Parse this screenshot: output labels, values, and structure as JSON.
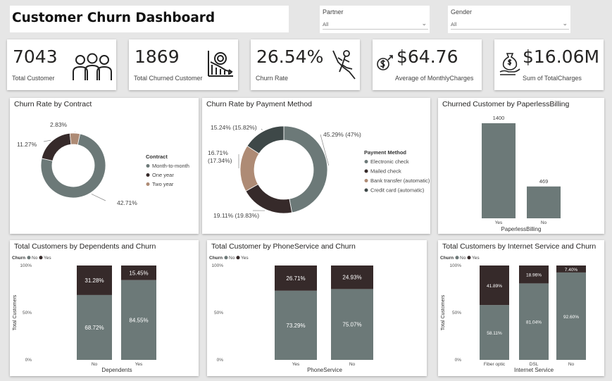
{
  "header": {
    "title": "Customer Churn Dashboard"
  },
  "slicers": [
    {
      "label": "Partner",
      "value": "All"
    },
    {
      "label": "Gender",
      "value": "All"
    }
  ],
  "kpis": [
    {
      "value": "7043",
      "label": "Total Customer",
      "icon": "people-group-icon"
    },
    {
      "value": "1869",
      "label": "Total Churned Customer",
      "icon": "declining-chart-icon"
    },
    {
      "value": "26.54%",
      "label": "Churn Rate",
      "icon": "falling-person-icon"
    },
    {
      "value": "$64.76",
      "label": "Average of MonthlyCharges",
      "icon": "dollar-growth-icon"
    },
    {
      "value": "$16.06M",
      "label": "Sum of TotalCharges",
      "icon": "money-bag-hand-icon"
    }
  ],
  "colors": {
    "primary": "#6c7978",
    "dark": "#362a2a",
    "tan": "#ae8b75",
    "darkslate": "#3e4848"
  },
  "chart_data": [
    {
      "type": "pie",
      "title": "Churn Rate by Contract",
      "legend_title": "Contract",
      "legend_position": "right",
      "slices": [
        {
          "name": "Month-to-month",
          "value": 42.71,
          "label": "42.71%",
          "color": "#6c7978"
        },
        {
          "name": "One year",
          "value": 11.27,
          "label": "11.27%",
          "color": "#362a2a"
        },
        {
          "name": "Two year",
          "value": 2.83,
          "label": "2.83%",
          "color": "#ae8b75"
        }
      ]
    },
    {
      "type": "pie",
      "title": "Churn Rate by Payment Method",
      "legend_title": "Payment Method",
      "legend_position": "right",
      "slices": [
        {
          "name": "Electronic check",
          "value": 47,
          "label": "45.29% (47%)",
          "color": "#6c7978"
        },
        {
          "name": "Mailed check",
          "value": 19.83,
          "label": "19.11% (19.83%)",
          "color": "#362a2a"
        },
        {
          "name": "Bank transfer (automatic)",
          "value": 17.34,
          "label": "16.71% (17.34%)",
          "color": "#ae8b75"
        },
        {
          "name": "Credit card (automatic)",
          "value": 15.82,
          "label": "15.24% (15.82%)",
          "color": "#3e4848"
        }
      ]
    },
    {
      "type": "bar",
      "title": "Churned Customer by PaperlessBilling",
      "xlabel": "PaperlessBilling",
      "categories": [
        "Yes",
        "No"
      ],
      "values": [
        1400,
        469
      ],
      "ylim": [
        0,
        1400
      ]
    },
    {
      "type": "bar",
      "stacked": "100%",
      "title": "Total Customers by Dependents and Churn",
      "xlabel": "Dependents",
      "ylabel": "Total Customers",
      "legend_title": "Churn",
      "legend_position": "top-left",
      "yticks": [
        "0%",
        "50%",
        "100%"
      ],
      "categories": [
        "No",
        "Yes"
      ],
      "series": [
        {
          "name": "No",
          "values": [
            68.72,
            84.55
          ],
          "labels": [
            "68.72%",
            "84.55%"
          ]
        },
        {
          "name": "Yes",
          "values": [
            31.28,
            15.45
          ],
          "labels": [
            "31.28%",
            "15.45%"
          ]
        }
      ]
    },
    {
      "type": "bar",
      "stacked": "100%",
      "title": "Total Customer by PhoneService and Churn",
      "xlabel": "PhoneService",
      "ylabel": "",
      "legend_title": "Churn",
      "legend_position": "top-left",
      "yticks": [
        "0%",
        "50%",
        "100%"
      ],
      "categories": [
        "Yes",
        "No"
      ],
      "series": [
        {
          "name": "No",
          "values": [
            73.29,
            75.07
          ],
          "labels": [
            "73.29%",
            "75.07%"
          ]
        },
        {
          "name": "Yes",
          "values": [
            26.71,
            24.93
          ],
          "labels": [
            "26.71%",
            "24.93%"
          ]
        }
      ]
    },
    {
      "type": "bar",
      "stacked": "100%",
      "title": "Total Customers by Internet Service and Churn",
      "xlabel": "Internet Service",
      "ylabel": "Total Customers",
      "legend_title": "Churn",
      "legend_position": "top-left",
      "yticks": [
        "0%",
        "50%",
        "100%"
      ],
      "categories": [
        "Fiber optic",
        "DSL",
        "No"
      ],
      "series": [
        {
          "name": "No",
          "values": [
            58.11,
            81.04,
            92.6
          ],
          "labels": [
            "58.11%",
            "81.04%",
            "92.60%"
          ]
        },
        {
          "name": "Yes",
          "values": [
            41.89,
            18.96,
            7.4
          ],
          "labels": [
            "41.89%",
            "18.96%",
            "7.40%"
          ]
        }
      ]
    }
  ]
}
